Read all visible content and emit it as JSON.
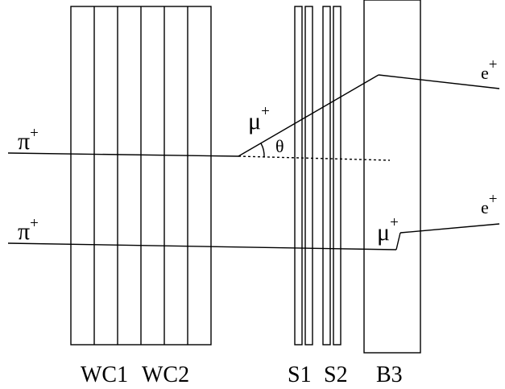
{
  "diagram": {
    "labels": {
      "pi_upper": "π",
      "pi_upper_sup": "+",
      "pi_lower": "π",
      "pi_lower_sup": "+",
      "mu_upper": "μ",
      "mu_upper_sup": "+",
      "mu_lower": "μ",
      "mu_lower_sup": "+",
      "e_upper": "e",
      "e_upper_sup": "+",
      "e_lower": "e",
      "e_lower_sup": "+",
      "theta": "θ",
      "wc1": "WC1",
      "wc2": "WC2",
      "s1": "S1",
      "s2": "S2",
      "b3": "B3"
    }
  }
}
